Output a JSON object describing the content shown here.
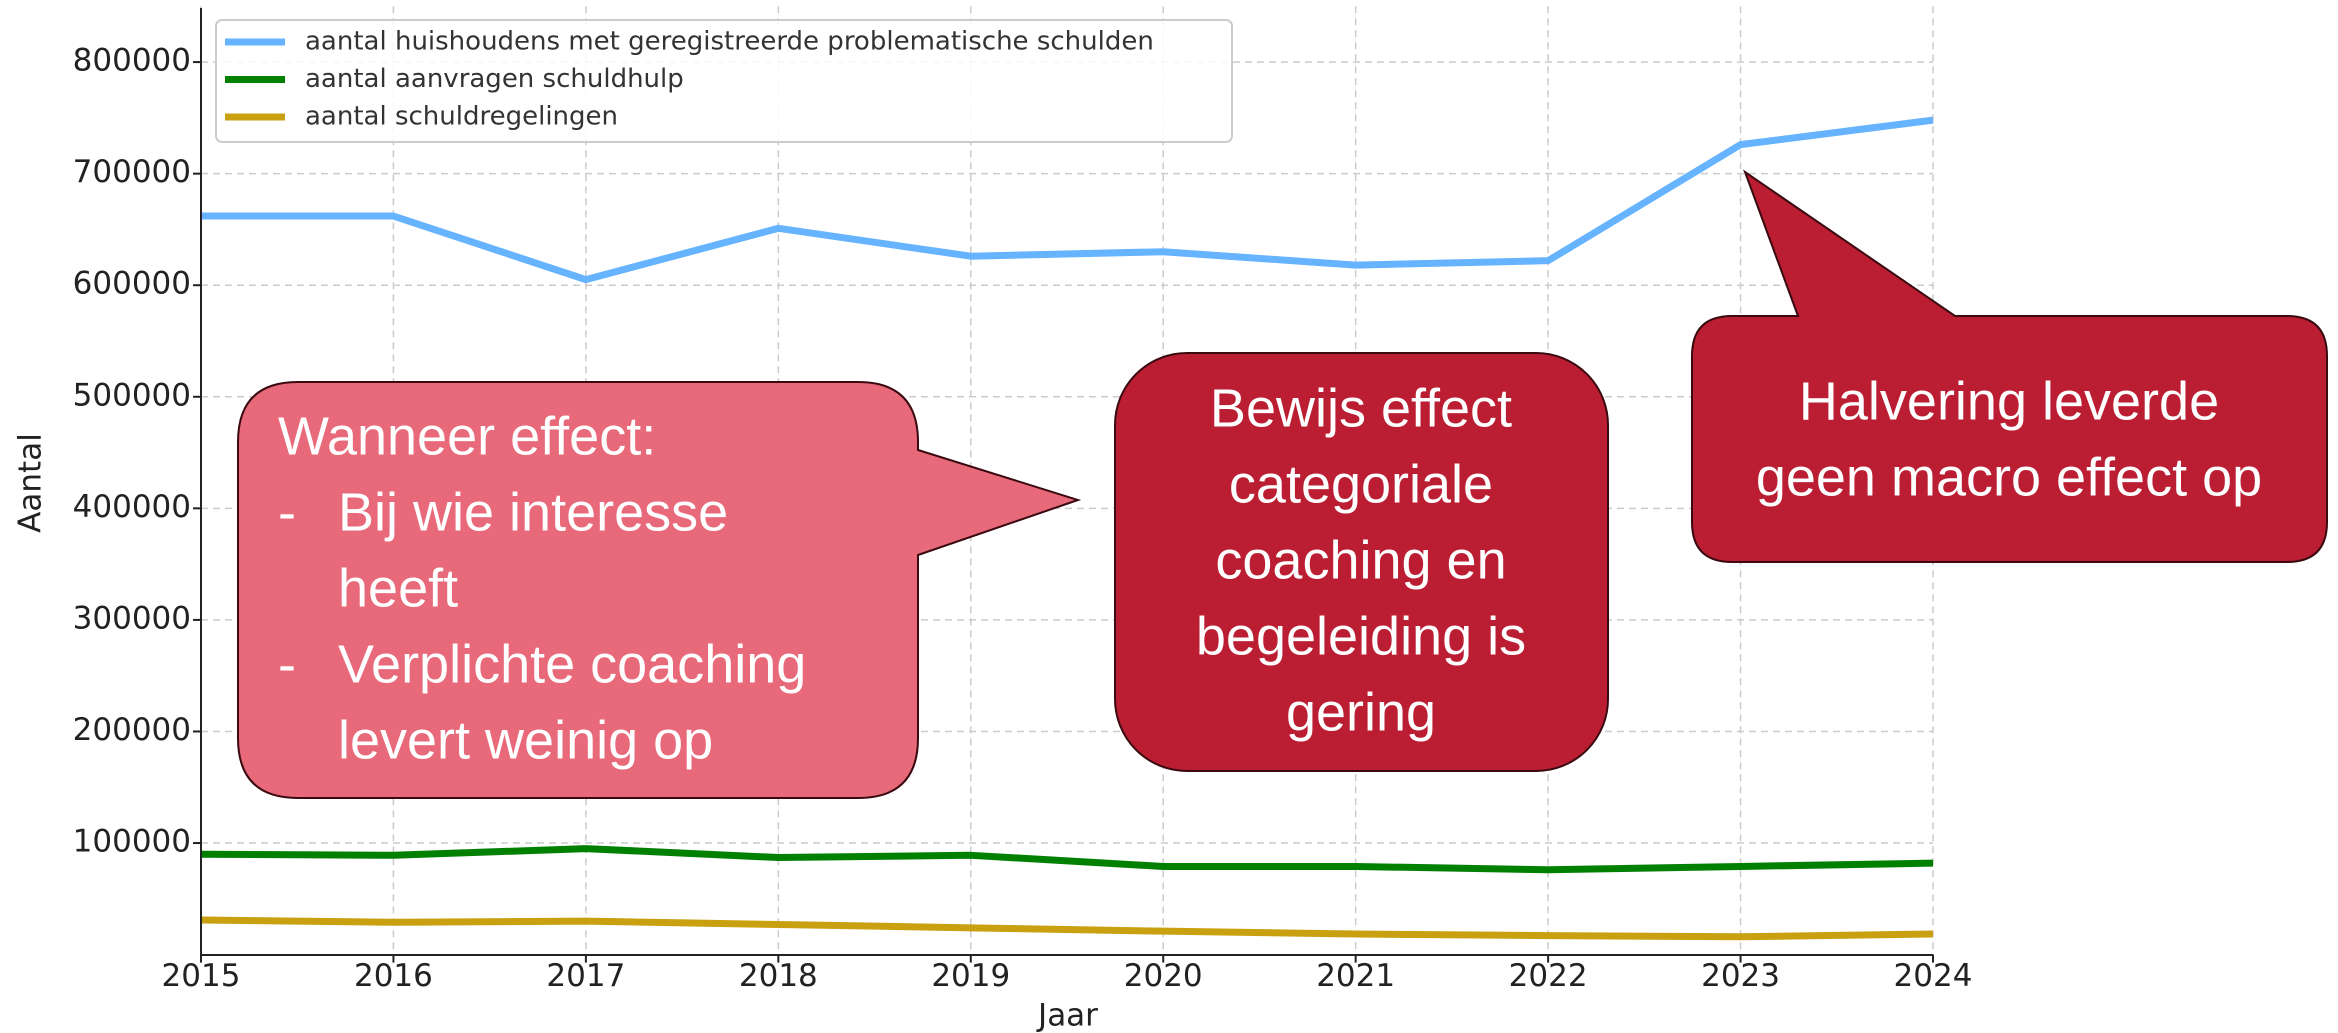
{
  "chart_data": {
    "type": "line",
    "xlabel": "Jaar",
    "ylabel": "Aantal",
    "x": [
      2015,
      2016,
      2017,
      2018,
      2019,
      2020,
      2021,
      2022,
      2023,
      2024
    ],
    "xlim": [
      2015,
      2024
    ],
    "xticks": [
      2015,
      2016,
      2017,
      2018,
      2019,
      2020,
      2021,
      2022,
      2023,
      2024
    ],
    "ylim": [
      0,
      850000
    ],
    "yticks": [
      100000,
      200000,
      300000,
      400000,
      500000,
      600000,
      700000,
      800000
    ],
    "grid": true,
    "legend": "upper left",
    "series": [
      {
        "name": "aantal huishoudens met geregistreerde problematische schulden",
        "color": "#66b3ff",
        "values": [
          662000,
          662000,
          605000,
          651000,
          626000,
          630000,
          618000,
          622000,
          726000,
          748000
        ]
      },
      {
        "name": "aantal aanvragen schuldhulp",
        "color": "#008000",
        "values": [
          90000,
          89000,
          95000,
          87000,
          89000,
          79000,
          79000,
          76000,
          79000,
          82000
        ]
      },
      {
        "name": "aantal schuldregelingen",
        "color": "#c8a010",
        "values": [
          31000,
          29000,
          30000,
          27000,
          24000,
          21000,
          18500,
          17000,
          16000,
          18500
        ]
      }
    ],
    "annotations": [
      {
        "title": "Wanneer effect:",
        "bullet": "-",
        "bullets": [
          [
            "Bij wie interesse",
            "heeft"
          ],
          [
            "Verplichte coaching",
            "levert weinig op"
          ]
        ]
      },
      {
        "lines": [
          "Bewijs effect",
          "categoriale",
          "coaching en",
          "begeleiding is",
          "gering"
        ]
      },
      {
        "lines": [
          "Halvering leverde",
          "geen macro effect op"
        ]
      }
    ]
  }
}
